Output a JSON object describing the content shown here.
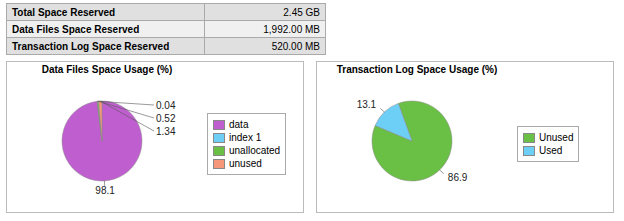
{
  "chart_data": [
    {
      "type": "table",
      "rows": [
        [
          "Total Space Reserved",
          "2.45 GB"
        ],
        [
          "Data Files Space Reserved",
          "1,992.00 MB"
        ],
        [
          "Transaction Log Space Reserved",
          "520.00 MB"
        ]
      ]
    },
    {
      "type": "pie",
      "title": "Data Files Space Usage (%)",
      "categories": [
        "data",
        "index 1",
        "unallocated",
        "unused"
      ],
      "values": [
        98.1,
        0.04,
        0.52,
        1.34
      ],
      "colors": [
        "#bf5fcf",
        "#6dcff6",
        "#6abf45",
        "#f7977a"
      ],
      "data_labels": true,
      "legend": "right"
    },
    {
      "type": "pie",
      "title": "Transaction Log Space Usage (%)",
      "categories": [
        "Unused",
        "Used"
      ],
      "values": [
        86.9,
        13.1
      ],
      "colors": [
        "#6abf45",
        "#6dcff6"
      ],
      "data_labels": true,
      "legend": "right"
    }
  ]
}
